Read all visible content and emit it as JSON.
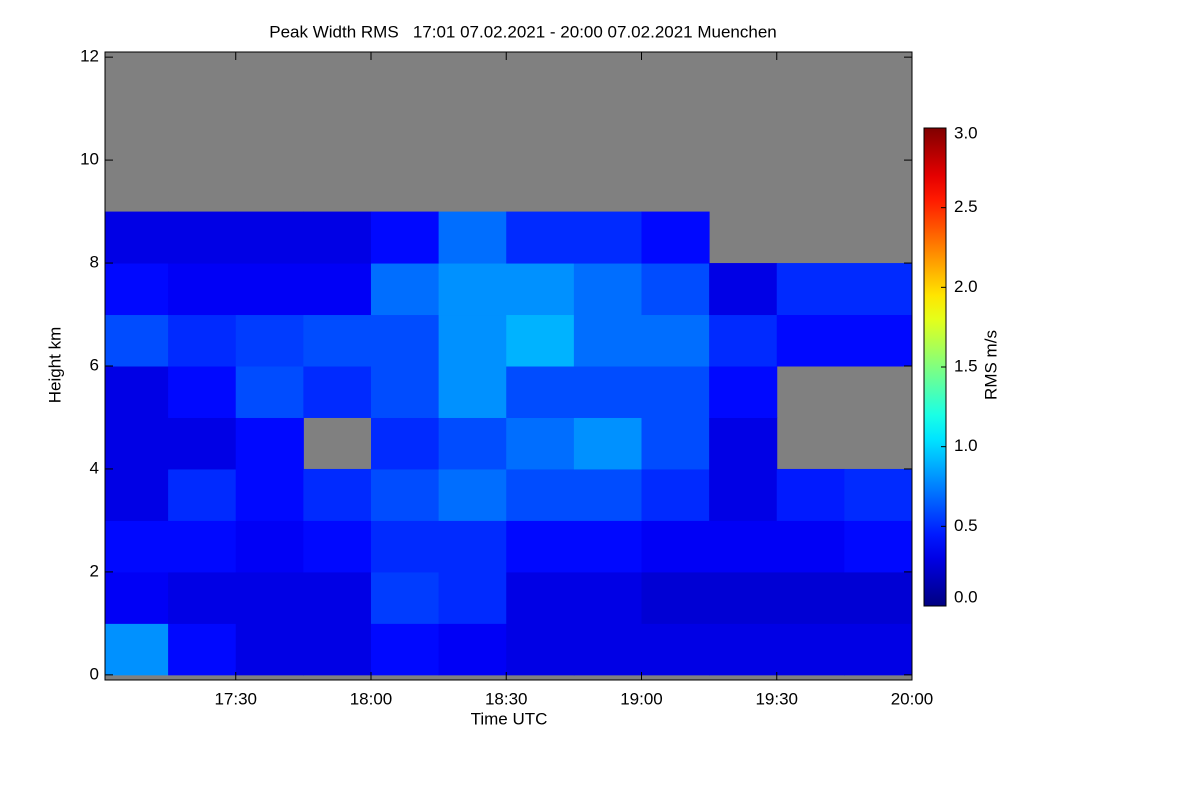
{
  "chart_data": {
    "type": "heatmap",
    "title": "Peak Width RMS   17:01 07.02.2021 - 20:00 07.02.2021 Muenchen",
    "x_label": "Time UTC",
    "y_label": "Height km",
    "colorbar_label": "RMS m/s",
    "colormap": "jet",
    "nodata_color": "#808080",
    "x": [
      17.125,
      17.375,
      17.625,
      17.875,
      18.125,
      18.375,
      18.625,
      18.875,
      19.125,
      19.375,
      19.625,
      19.875
    ],
    "y": [
      0.5,
      1.5,
      2.5,
      3.5,
      4.5,
      5.5,
      6.5,
      7.5,
      8.5,
      9.5,
      10.5,
      11.5
    ],
    "values": [
      [
        0.8,
        0.4,
        0.3,
        0.3,
        0.4,
        0.35,
        0.3,
        0.3,
        0.3,
        0.3,
        0.3,
        0.3
      ],
      [
        0.35,
        0.3,
        0.3,
        0.3,
        0.55,
        0.5,
        0.3,
        0.3,
        0.25,
        0.25,
        0.25,
        0.25
      ],
      [
        0.4,
        0.4,
        0.35,
        0.4,
        0.5,
        0.5,
        0.4,
        0.4,
        0.35,
        0.35,
        0.35,
        0.4
      ],
      [
        0.3,
        0.5,
        0.4,
        0.5,
        0.6,
        0.7,
        0.6,
        0.6,
        0.5,
        0.3,
        0.45,
        0.5
      ],
      [
        0.3,
        0.3,
        0.4,
        null,
        0.5,
        0.6,
        0.7,
        0.8,
        0.6,
        0.3,
        null,
        null
      ],
      [
        0.3,
        0.4,
        0.6,
        0.5,
        0.6,
        0.8,
        0.6,
        0.6,
        0.6,
        0.4,
        null,
        null
      ],
      [
        0.6,
        0.5,
        0.55,
        0.6,
        0.6,
        0.8,
        0.9,
        0.7,
        0.7,
        0.5,
        0.4,
        0.4
      ],
      [
        0.4,
        0.35,
        0.35,
        0.35,
        0.7,
        0.8,
        0.8,
        0.7,
        0.6,
        0.3,
        0.5,
        0.5
      ],
      [
        0.3,
        0.3,
        0.3,
        0.3,
        0.4,
        0.7,
        0.5,
        0.5,
        0.4,
        null,
        null,
        null
      ],
      [
        null,
        null,
        null,
        null,
        null,
        null,
        null,
        null,
        null,
        null,
        null,
        null
      ],
      [
        null,
        null,
        null,
        null,
        null,
        null,
        null,
        null,
        null,
        null,
        null,
        null
      ],
      [
        null,
        null,
        null,
        null,
        null,
        null,
        null,
        null,
        null,
        null,
        null,
        null
      ]
    ],
    "xlim": [
      17.0167,
      20.0
    ],
    "xticks": [
      {
        "value": 17.5,
        "label": "17:30"
      },
      {
        "value": 18.0,
        "label": "18:00"
      },
      {
        "value": 18.5,
        "label": "18:30"
      },
      {
        "value": 19.0,
        "label": "19:00"
      },
      {
        "value": 19.5,
        "label": "19:30"
      },
      {
        "value": 20.0,
        "label": "20:00"
      }
    ],
    "ylim": [
      -0.1,
      12.1
    ],
    "yticks": [
      0,
      2,
      4,
      6,
      8,
      10,
      12
    ],
    "clim": [
      0,
      3
    ],
    "cticks": [
      {
        "value": 0,
        "label": "0.0"
      },
      {
        "value": 0.5,
        "label": "0.5"
      },
      {
        "value": 1,
        "label": "1.0"
      },
      {
        "value": 1.5,
        "label": "1.5"
      },
      {
        "value": 2,
        "label": "2.0"
      },
      {
        "value": 2.5,
        "label": "2.5"
      },
      {
        "value": 3,
        "label": "3.0"
      }
    ]
  }
}
